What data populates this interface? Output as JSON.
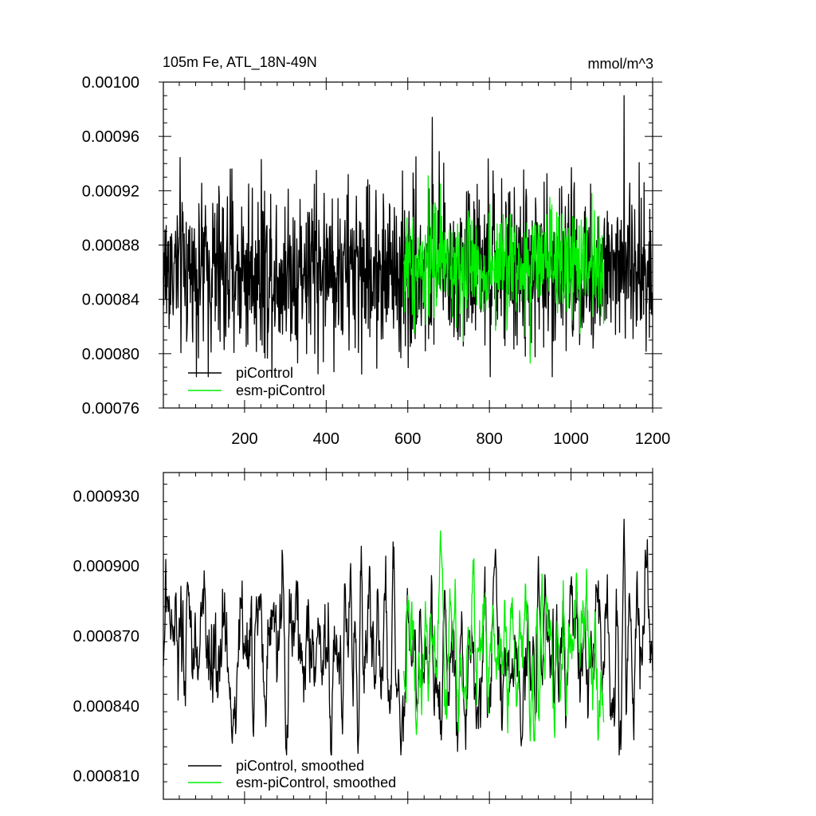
{
  "chart_data": [
    {
      "type": "line",
      "title_left": "105m Fe, ATL_18N-49N",
      "title_right": "mmol/m^3",
      "xlabel": "",
      "ylabel": "",
      "xlim": [
        1,
        1200
      ],
      "ylim": [
        0.00076,
        0.001
      ],
      "x_tick_labels": [
        "200",
        "400",
        "600",
        "800",
        "1000",
        "1200"
      ],
      "x_ticks": [
        200,
        400,
        600,
        800,
        1000,
        1200
      ],
      "y_tick_labels": [
        "0.00076",
        "0.00080",
        "0.00084",
        "0.00088",
        "0.00092",
        "0.00096",
        "0.00100"
      ],
      "y_ticks": [
        0.00076,
        0.0008,
        0.00084,
        0.00088,
        0.00092,
        0.00096,
        0.001
      ],
      "legend_position": "bottom-left",
      "grid": false,
      "series": [
        {
          "name": "piControl",
          "color": "#000000",
          "x_start": 1,
          "x_end": 1200,
          "mean": 0.000862,
          "range": [
            0.000783,
            0.00099
          ],
          "points": [
            [
              1,
              0.000857
            ],
            [
              150,
              0.000803
            ],
            [
              241,
              0.000943
            ],
            [
              376,
              0.000935
            ],
            [
              440,
              0.000814
            ],
            [
              583,
              0.000797
            ],
            [
              620,
              0.000945
            ],
            [
              660,
              0.000974
            ],
            [
              802,
              0.000783
            ],
            [
              1001,
              0.000937
            ],
            [
              1130,
              0.00099
            ],
            [
              1200,
              0.000838
            ]
          ]
        },
        {
          "name": "esm-piControl",
          "color": "#00ee00",
          "x_start": 590,
          "x_end": 1080,
          "mean": 0.000864,
          "range": [
            0.000793,
            0.000931
          ],
          "points": [
            [
              590,
              0.000866
            ],
            [
              650,
              0.000931
            ],
            [
              680,
              0.000925
            ],
            [
              900,
              0.000793
            ],
            [
              1080,
              0.000822
            ]
          ]
        }
      ]
    },
    {
      "type": "line",
      "xlabel": "",
      "ylabel": "",
      "xlim": [
        1,
        1200
      ],
      "ylim": [
        0.0008,
        0.00094
      ],
      "y_tick_labels": [
        "0.000810",
        "0.000840",
        "0.000870",
        "0.000900",
        "0.000930"
      ],
      "y_ticks": [
        0.00081,
        0.00084,
        0.00087,
        0.0009,
        0.00093
      ],
      "x_ticks": [
        200,
        400,
        600,
        800,
        1000,
        1200
      ],
      "legend_position": "bottom-left",
      "grid": false,
      "series": [
        {
          "name": "piControl, smoothed",
          "color": "#000000",
          "x_start": 1,
          "x_end": 1200,
          "mean": 0.000864,
          "range": [
            0.000819,
            0.00092
          ],
          "points": [
            [
              1,
              0.000857
            ],
            [
              15,
              0.000887
            ],
            [
              60,
              0.000893
            ],
            [
              170,
              0.000824
            ],
            [
              240,
              0.000888
            ],
            [
              440,
              0.000828
            ],
            [
              460,
              0.000901
            ],
            [
              583,
              0.000819
            ],
            [
              920,
              0.000904
            ],
            [
              1130,
              0.00092
            ],
            [
              1200,
              0.000855
            ]
          ]
        },
        {
          "name": "esm-piControl, smoothed",
          "color": "#00ee00",
          "x_start": 590,
          "x_end": 1080,
          "mean": 0.000866,
          "range": [
            0.000825,
            0.000915
          ],
          "points": [
            [
              590,
              0.000855
            ],
            [
              680,
              0.000915
            ],
            [
              900,
              0.000825
            ],
            [
              1080,
              0.000833
            ]
          ]
        }
      ]
    }
  ]
}
